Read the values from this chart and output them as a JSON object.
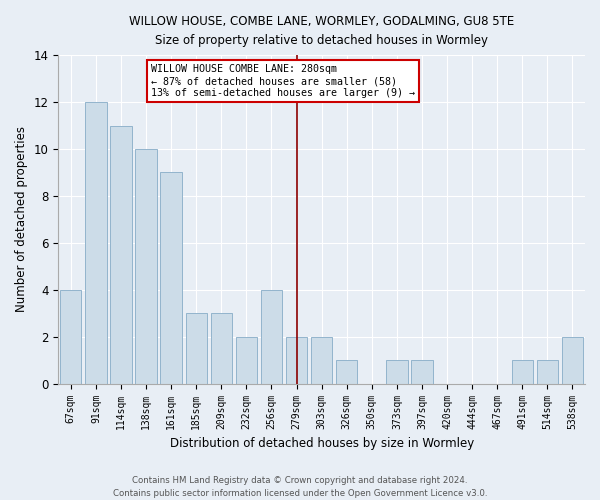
{
  "title1": "WILLOW HOUSE, COMBE LANE, WORMLEY, GODALMING, GU8 5TE",
  "title2": "Size of property relative to detached houses in Wormley",
  "xlabel": "Distribution of detached houses by size in Wormley",
  "ylabel": "Number of detached properties",
  "categories": [
    "67sqm",
    "91sqm",
    "114sqm",
    "138sqm",
    "161sqm",
    "185sqm",
    "209sqm",
    "232sqm",
    "256sqm",
    "279sqm",
    "303sqm",
    "326sqm",
    "350sqm",
    "373sqm",
    "397sqm",
    "420sqm",
    "444sqm",
    "467sqm",
    "491sqm",
    "514sqm",
    "538sqm"
  ],
  "values": [
    4,
    12,
    11,
    10,
    9,
    3,
    3,
    2,
    4,
    2,
    2,
    1,
    0,
    1,
    1,
    0,
    0,
    0,
    1,
    1,
    2
  ],
  "bar_color": "#ccdce8",
  "bar_edge_color": "#92b4cc",
  "vline_x": 9,
  "vline_color": "#8b0000",
  "annotation_title": "WILLOW HOUSE COMBE LANE: 280sqm",
  "annotation_line1": "← 87% of detached houses are smaller (58)",
  "annotation_line2": "13% of semi-detached houses are larger (9) →",
  "annotation_box_color": "#ffffff",
  "annotation_border_color": "#cc0000",
  "ylim": [
    0,
    14
  ],
  "yticks": [
    0,
    2,
    4,
    6,
    8,
    10,
    12,
    14
  ],
  "footer1": "Contains HM Land Registry data © Crown copyright and database right 2024.",
  "footer2": "Contains public sector information licensed under the Open Government Licence v3.0.",
  "bg_color": "#e8eef5",
  "plot_bg_color": "#e8eef5"
}
